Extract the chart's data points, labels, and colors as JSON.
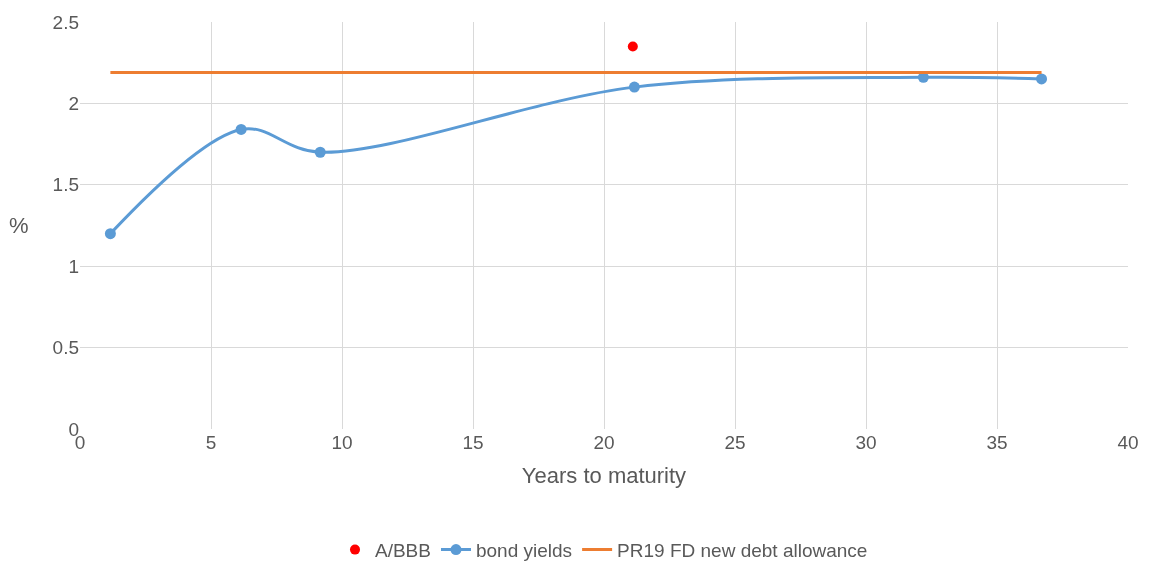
{
  "chart_data": {
    "type": "line",
    "xlabel": "Years to maturity",
    "ylabel": "%",
    "series": [
      {
        "name": "A/BBB",
        "type": "scatter",
        "color": "#ff0000",
        "marker": "circle",
        "x": [
          21.1
        ],
        "values": [
          2.35
        ]
      },
      {
        "name": "bond yields",
        "color": "#5b9bd5",
        "marker": "circle",
        "line_style": "solid",
        "x": [
          1.16,
          6.15,
          9.17,
          21.16,
          32.19,
          36.7
        ],
        "values": [
          1.2,
          1.84,
          1.7,
          2.1,
          2.16,
          2.15
        ]
      },
      {
        "name": "PR19 FD new debt allowance",
        "color": "#ed7d31",
        "marker": "none",
        "line_style": "solid",
        "x": [
          1.16,
          36.7
        ],
        "values": [
          2.19,
          2.19
        ]
      }
    ],
    "xlim": [
      0,
      40
    ],
    "xticks": [
      0,
      5,
      10,
      15,
      20,
      25,
      30,
      35,
      40
    ],
    "ylim": [
      0,
      2.5
    ],
    "yticks": [
      0,
      0.5,
      1,
      1.5,
      2,
      2.5
    ],
    "grid": true,
    "legend": "bottom"
  }
}
